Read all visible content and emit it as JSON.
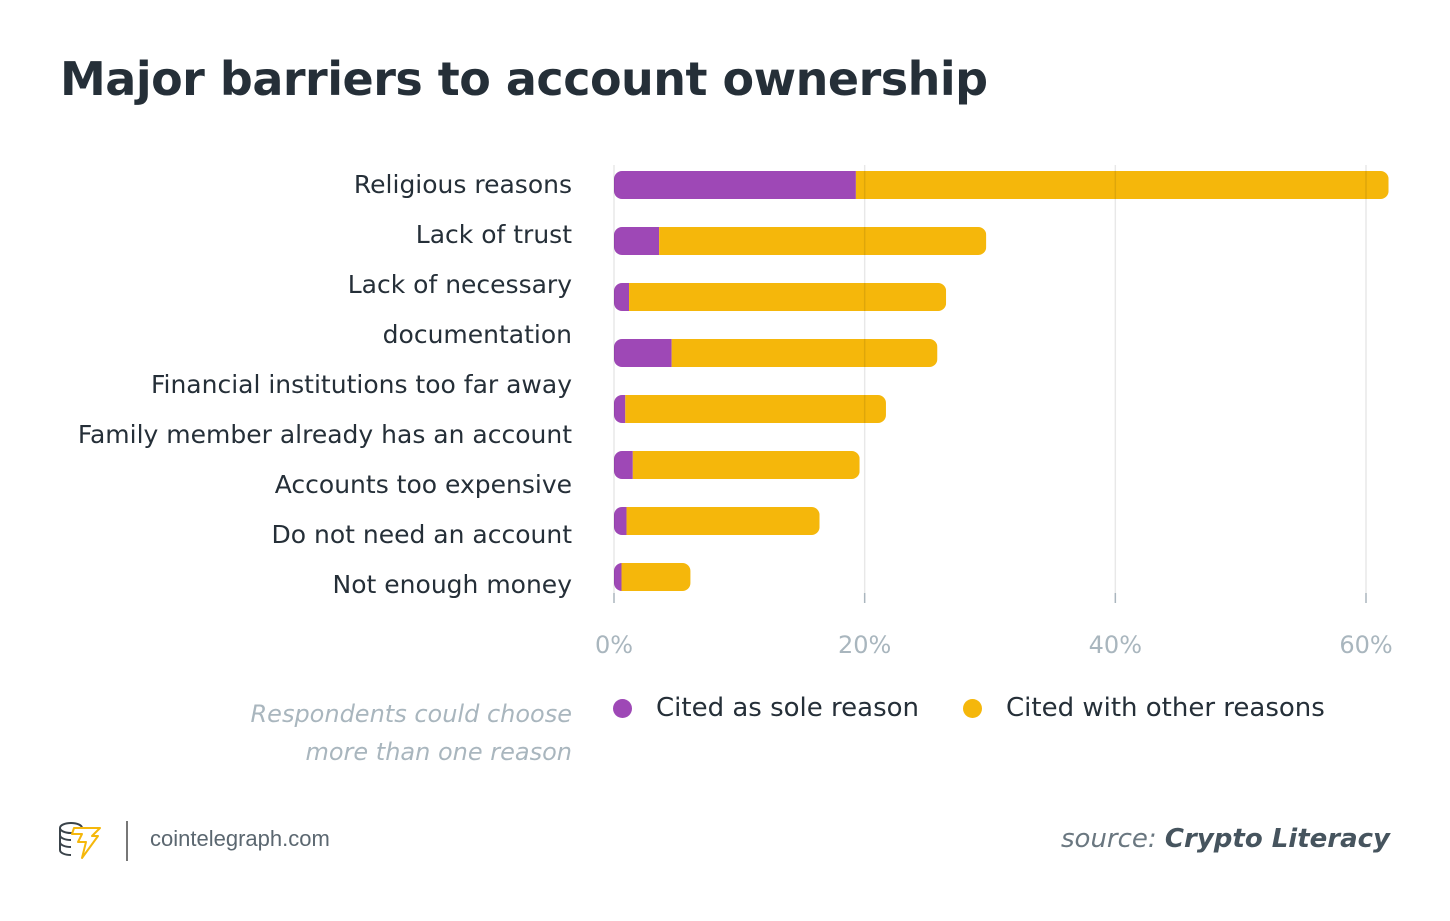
{
  "title": "Major barriers to account ownership",
  "colors": {
    "sole": "#9e48b6",
    "other": "#f5b70b",
    "grid": "#e6e8ea",
    "axis_text": "#a9b6be"
  },
  "label_lines": [
    "Religious reasons",
    "Lack of trust",
    "Lack of necessary",
    "documentation",
    "Financial institutions too far away",
    "Family member already has an account",
    "Accounts too expensive",
    "Do not need an account",
    "Not enough money"
  ],
  "chart_data": {
    "type": "bar",
    "orientation": "horizontal",
    "stacked": true,
    "title": "Major barriers to account ownership",
    "categories": [
      "Religious reasons",
      "Lack of trust",
      "Lack of necessary documentation",
      "Financial institutions too far away",
      "Family member already has an account",
      "Accounts too expensive",
      "Do not need an account",
      "Not enough money"
    ],
    "series": [
      {
        "name": "Cited as sole reason",
        "values": [
          19.3,
          3.6,
          1.2,
          4.6,
          0.9,
          1.5,
          1.0,
          0.6
        ]
      },
      {
        "name": "Cited with other reasons",
        "values": [
          42.5,
          26.1,
          25.3,
          21.2,
          20.8,
          18.1,
          15.4,
          5.5
        ]
      }
    ],
    "totals": [
      61.8,
      29.7,
      26.5,
      25.8,
      21.7,
      19.6,
      16.4,
      6.1
    ],
    "xlim": [
      0,
      60
    ],
    "xticks": [
      "0%",
      "20%",
      "40%",
      "60%"
    ],
    "xtick_values": [
      0,
      20,
      40,
      60
    ],
    "xlabel": "",
    "ylabel": "",
    "grid": true,
    "legend_position": "bottom"
  },
  "note": [
    "Respondents could choose",
    "more than one reason"
  ],
  "legend": [
    {
      "label": "Cited as sole reason"
    },
    {
      "label": "Cited with other reasons"
    }
  ],
  "footer": {
    "site": "cointelegraph.com",
    "source_prefix": "source:",
    "source_name": "Crypto Literacy",
    "logo_icon": "cointelegraph-logo-icon"
  }
}
